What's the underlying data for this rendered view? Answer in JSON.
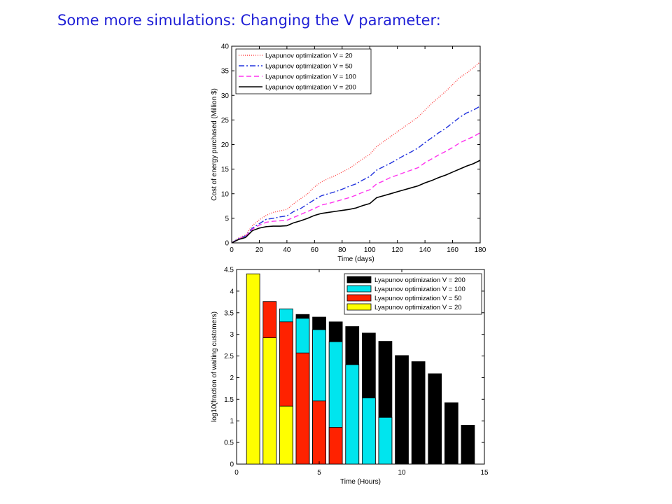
{
  "slide": {
    "title": "Some more simulations: Changing the V parameter:"
  },
  "chart_data": [
    {
      "type": "line",
      "xlabel": "Time (days)",
      "ylabel": "Cost of energy purchased (Million $)",
      "xlim": [
        0,
        180
      ],
      "ylim": [
        0,
        40
      ],
      "xticks": [
        0,
        20,
        40,
        60,
        80,
        100,
        120,
        140,
        160,
        180
      ],
      "yticks": [
        0,
        5,
        10,
        15,
        20,
        25,
        30,
        35,
        40
      ],
      "grid": false,
      "legend_position": "top-left",
      "x": [
        0,
        5,
        10,
        15,
        20,
        25,
        30,
        35,
        40,
        45,
        50,
        55,
        60,
        65,
        70,
        75,
        80,
        85,
        90,
        95,
        100,
        105,
        110,
        115,
        120,
        125,
        130,
        135,
        140,
        145,
        150,
        155,
        160,
        165,
        170,
        175,
        180
      ],
      "series": [
        {
          "name": "Lyapunov optimization V = 20",
          "color": "#ff4040",
          "dash": "1,2",
          "values": [
            0,
            1.0,
            1.6,
            3.5,
            4.7,
            5.6,
            6.2,
            6.5,
            6.8,
            8.0,
            9.0,
            10.0,
            11.4,
            12.4,
            13.1,
            13.7,
            14.4,
            15.1,
            16.1,
            17.1,
            18.0,
            19.6,
            20.6,
            21.6,
            22.6,
            23.6,
            24.6,
            25.6,
            27.0,
            28.4,
            29.6,
            30.8,
            32.2,
            33.6,
            34.5,
            35.6,
            36.8
          ]
        },
        {
          "name": "Lyapunov optimization V = 50",
          "color": "#2233dd",
          "dash": "8,3,2,3",
          "values": [
            0,
            0.9,
            1.4,
            3.0,
            3.9,
            4.8,
            5.0,
            5.3,
            5.5,
            6.4,
            7.0,
            7.9,
            8.8,
            9.6,
            10.0,
            10.4,
            10.9,
            11.5,
            12.0,
            12.8,
            13.5,
            14.8,
            15.5,
            16.2,
            17.0,
            17.8,
            18.5,
            19.3,
            20.4,
            21.4,
            22.4,
            23.3,
            24.4,
            25.5,
            26.4,
            27.0,
            27.8
          ]
        },
        {
          "name": "Lyapunov optimization V = 100",
          "color": "#ff33ee",
          "dash": "7,4",
          "values": [
            0,
            0.8,
            1.3,
            2.8,
            3.6,
            4.2,
            4.4,
            4.5,
            4.6,
            5.2,
            5.8,
            6.4,
            7.0,
            7.7,
            8.0,
            8.4,
            8.8,
            9.2,
            9.7,
            10.3,
            10.8,
            12.0,
            12.6,
            13.3,
            13.8,
            14.3,
            14.8,
            15.3,
            16.3,
            17.1,
            17.9,
            18.6,
            19.4,
            20.3,
            21.0,
            21.6,
            22.4
          ]
        },
        {
          "name": "Lyapunov optimization V = 200",
          "color": "#000000",
          "dash": "",
          "values": [
            0,
            0.7,
            1.1,
            2.5,
            3.0,
            3.3,
            3.4,
            3.4,
            3.5,
            4.1,
            4.5,
            5.0,
            5.6,
            6.0,
            6.2,
            6.4,
            6.6,
            6.8,
            7.1,
            7.6,
            8.0,
            9.2,
            9.6,
            10.0,
            10.4,
            10.8,
            11.2,
            11.6,
            12.2,
            12.7,
            13.3,
            13.8,
            14.4,
            15.0,
            15.6,
            16.1,
            16.8
          ]
        }
      ]
    },
    {
      "type": "bar",
      "xlabel": "Time (Hours)",
      "ylabel": "log10(fraction of waiting customers)",
      "xlim": [
        0,
        15
      ],
      "ylim": [
        0,
        4.5
      ],
      "xticks": [
        0,
        5,
        10,
        15
      ],
      "yticks": [
        0,
        0.5,
        1,
        1.5,
        2,
        2.5,
        3,
        3.5,
        4,
        4.5
      ],
      "grid": false,
      "legend_position": "top-right",
      "bar_positions": [
        1,
        2,
        3,
        4,
        5,
        6,
        7,
        8,
        9,
        10,
        11,
        12,
        13,
        14
      ],
      "series": [
        {
          "name": "Lyapunov optimization V = 200",
          "color": "#000000",
          "values": [
            null,
            null,
            null,
            3.46,
            3.4,
            3.29,
            3.18,
            3.03,
            2.84,
            2.51,
            2.37,
            2.09,
            1.42,
            0.9
          ]
        },
        {
          "name": "Lyapunov optimization V = 100",
          "color": "#00e5ee",
          "values": [
            null,
            null,
            3.59,
            3.37,
            3.11,
            2.83,
            2.3,
            1.53,
            1.08,
            null,
            null,
            null,
            null,
            null
          ]
        },
        {
          "name": "Lyapunov optimization V = 50",
          "color": "#ff2200",
          "values": [
            null,
            3.76,
            3.29,
            2.57,
            1.46,
            0.85,
            null,
            null,
            null,
            null,
            null,
            null,
            null,
            null
          ]
        },
        {
          "name": "Lyapunov optimization V = 20",
          "color": "#ffff00",
          "values": [
            4.4,
            2.92,
            1.34,
            null,
            null,
            null,
            null,
            null,
            null,
            null,
            null,
            null,
            null,
            null
          ]
        }
      ]
    }
  ]
}
